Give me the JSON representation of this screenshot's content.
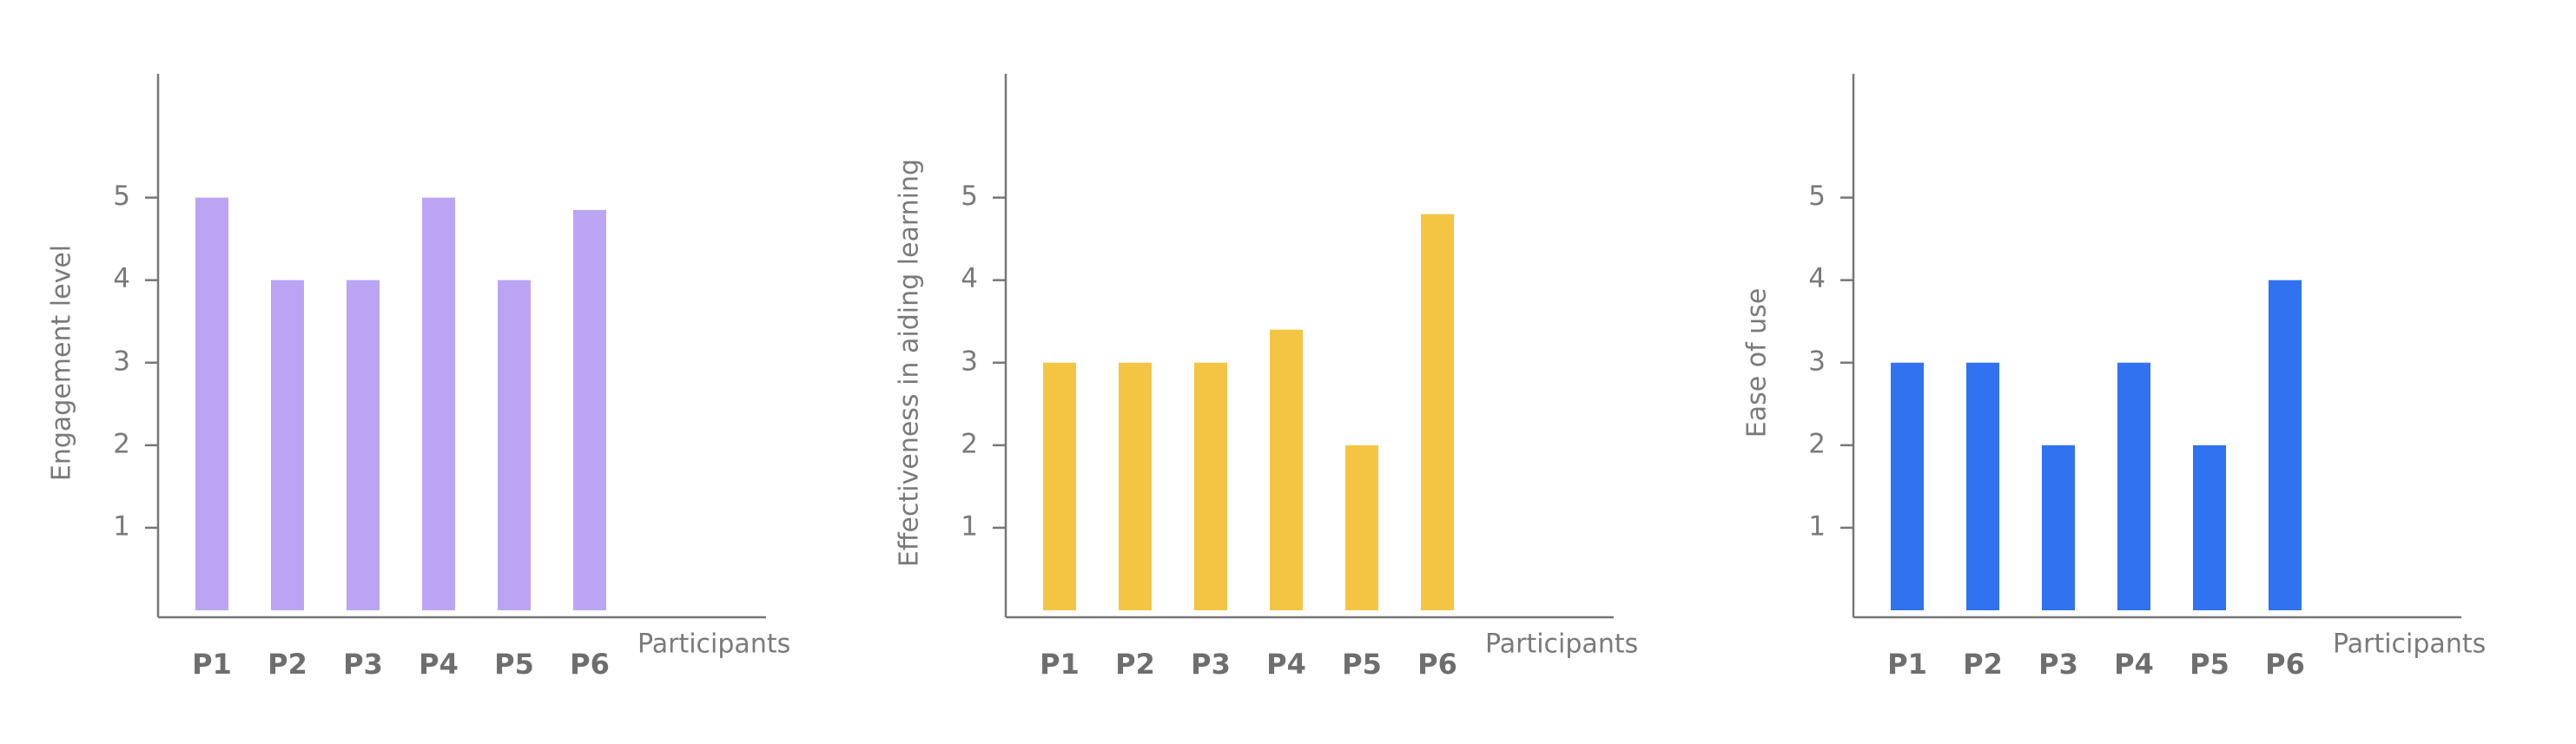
{
  "chart_data": [
    {
      "type": "bar",
      "y_label": "Engagement level",
      "x_label": "Participants",
      "categories": [
        "P1",
        "P2",
        "P3",
        "P4",
        "P5",
        "P6"
      ],
      "values": [
        5,
        4,
        4,
        5,
        4,
        4.85
      ],
      "color": "#bca4f5",
      "ylim": [
        0,
        6.5
      ],
      "yticks": [
        1,
        2,
        3,
        4,
        5
      ]
    },
    {
      "type": "bar",
      "y_label": "Effectiveness in aiding learning",
      "x_label": "Participants",
      "categories": [
        "P1",
        "P2",
        "P3",
        "P4",
        "P5",
        "P6"
      ],
      "values": [
        3,
        3,
        3,
        3.4,
        2,
        4.8
      ],
      "color": "#f4c542",
      "ylim": [
        0,
        6.5
      ],
      "yticks": [
        1,
        2,
        3,
        4,
        5
      ]
    },
    {
      "type": "bar",
      "y_label": "Ease of use",
      "x_label": "Participants",
      "categories": [
        "P1",
        "P2",
        "P3",
        "P4",
        "P5",
        "P6"
      ],
      "values": [
        3,
        3,
        2,
        3,
        2,
        4
      ],
      "color": "#3172f0",
      "ylim": [
        0,
        6.5
      ],
      "yticks": [
        1,
        2,
        3,
        4,
        5
      ]
    }
  ]
}
